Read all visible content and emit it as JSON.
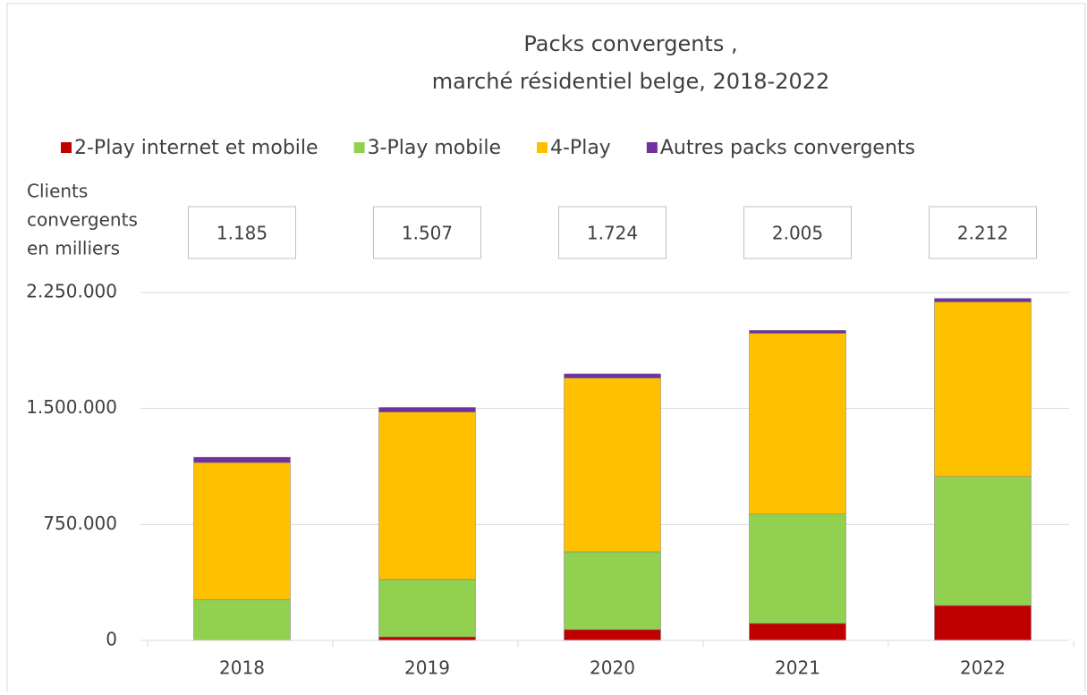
{
  "chart_data": {
    "type": "stacked_bar",
    "title": "Packs convergents ,",
    "subtitle": "marché résidentiel belge, 2018-2022",
    "categories": [
      "2018",
      "2019",
      "2020",
      "2021",
      "2022"
    ],
    "series": [
      {
        "name": "2-Play internet et mobile",
        "color": "#c00000",
        "values": [
          2000,
          23000,
          70000,
          110000,
          226000
        ]
      },
      {
        "name": "3-Play mobile",
        "color": "#92d050",
        "values": [
          263000,
          371000,
          503000,
          707000,
          834000
        ]
      },
      {
        "name": "4-Play",
        "color": "#ffc000",
        "values": [
          885000,
          1083000,
          1124000,
          1169000,
          1129000
        ]
      },
      {
        "name": "Autres packs convergents",
        "color": "#7030a0",
        "values": [
          35000,
          30000,
          27000,
          19000,
          23000
        ]
      }
    ],
    "annotation_title": [
      "Clients",
      "convergents",
      "en milliers"
    ],
    "annotations": [
      "1.185",
      "1.507",
      "1.724",
      "2.005",
      "2.212"
    ],
    "ylim": [
      0,
      2250000
    ],
    "yticks": [
      0,
      {
        "value": 750000,
        "label": "750.000"
      },
      {
        "value": 1500000,
        "label": "1.500.000"
      },
      {
        "value": 2250000,
        "label": "2.250.000"
      }
    ],
    "grid": true,
    "legend": "top"
  }
}
